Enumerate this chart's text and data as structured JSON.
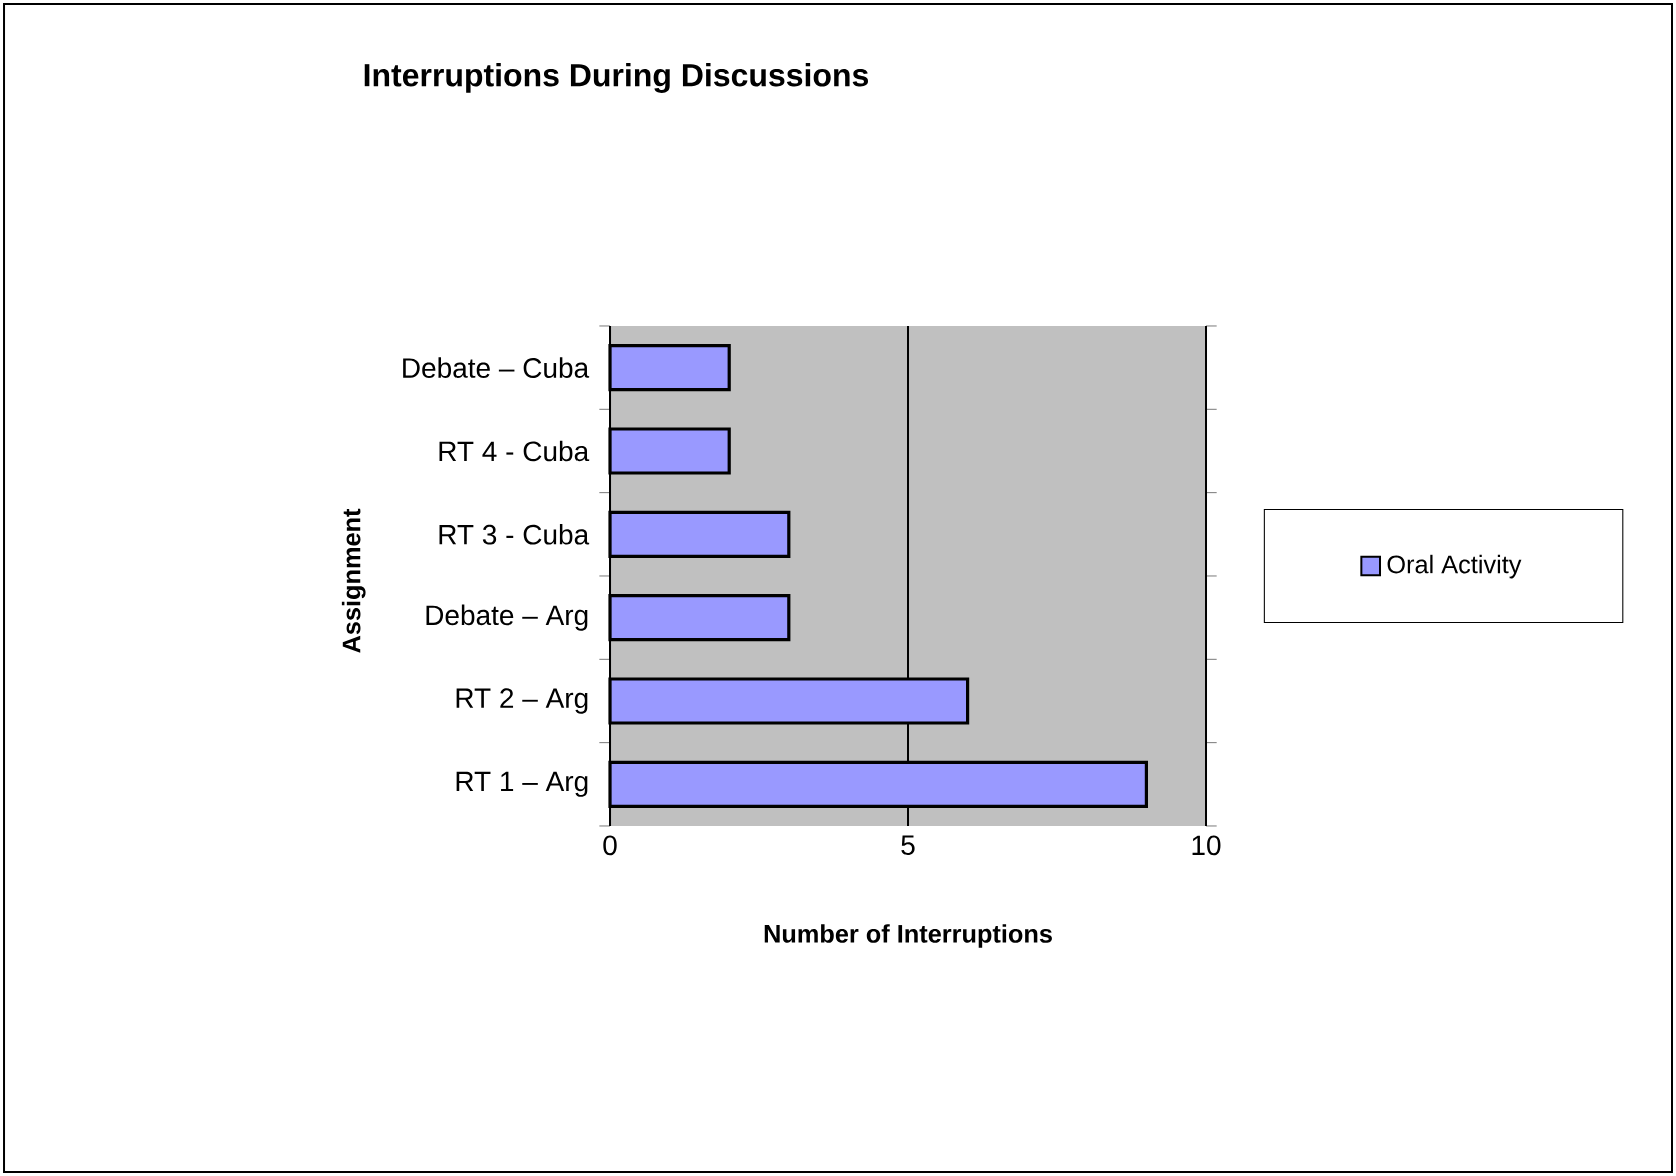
{
  "chart_data": {
    "type": "bar",
    "orientation": "horizontal",
    "title": "Interruptions During Discussions",
    "xlabel": "Number of Interruptions",
    "ylabel": "Assignment",
    "categories": [
      "Debate – Cuba",
      "RT 4 - Cuba",
      "RT 3 - Cuba",
      "Debate – Arg",
      "RT 2 – Arg",
      "RT 1 – Arg"
    ],
    "series": [
      {
        "name": "Oral Activity",
        "color": "#9999ff",
        "values": [
          2,
          2,
          3,
          3,
          6,
          9
        ]
      }
    ],
    "xlim": [
      0,
      10
    ],
    "xticks": [
      0,
      5,
      10
    ],
    "grid": "x",
    "legend": "right"
  }
}
